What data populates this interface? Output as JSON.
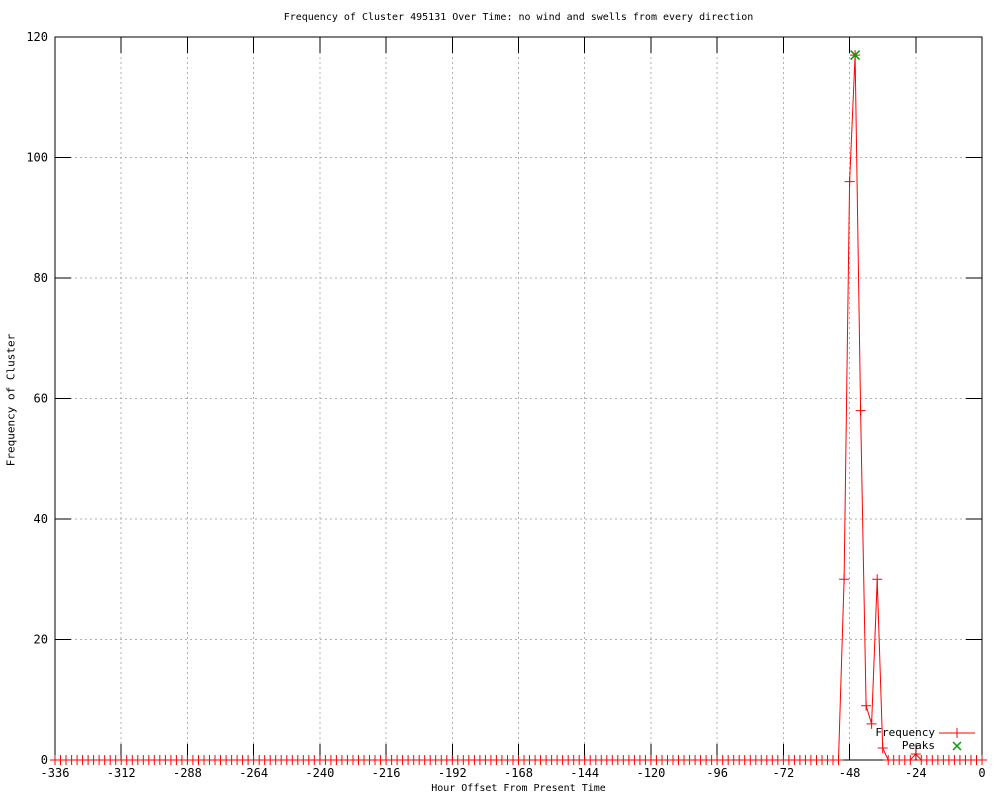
{
  "chart_data": {
    "type": "line",
    "title": "Frequency of Cluster 495131 Over Time: no wind and swells from every direction",
    "xlabel": "Hour Offset From Present Time",
    "ylabel": "Frequency of Cluster",
    "xlim": [
      -336,
      0
    ],
    "ylim": [
      0,
      120
    ],
    "x_ticks": [
      -336,
      -312,
      -288,
      -264,
      -240,
      -216,
      -192,
      -168,
      -144,
      -120,
      -96,
      -72,
      -48,
      -24,
      0
    ],
    "y_ticks": [
      0,
      20,
      40,
      60,
      80,
      100,
      120
    ],
    "grid": true,
    "grid_color": "#b0b0b0",
    "axis_color": "#000000",
    "legend_position": "inside bottom-right",
    "series": [
      {
        "name": "Frequency",
        "style": "linespoints",
        "marker": "plus",
        "color": "#ff0000",
        "x_start": -336,
        "x_end": 0,
        "x_step": 2,
        "default_value": 0,
        "values_by_x": {
          "-52": 0,
          "-50": 30,
          "-48": 96,
          "-46": 117,
          "-44": 58,
          "-42": 9,
          "-40": 6,
          "-38": 30,
          "-36": 2,
          "-34": 0,
          "-24": 1
        }
      },
      {
        "name": "Peaks",
        "style": "points",
        "marker": "cross",
        "color": "#00a000",
        "points": [
          [
            -46,
            117
          ]
        ]
      }
    ]
  }
}
